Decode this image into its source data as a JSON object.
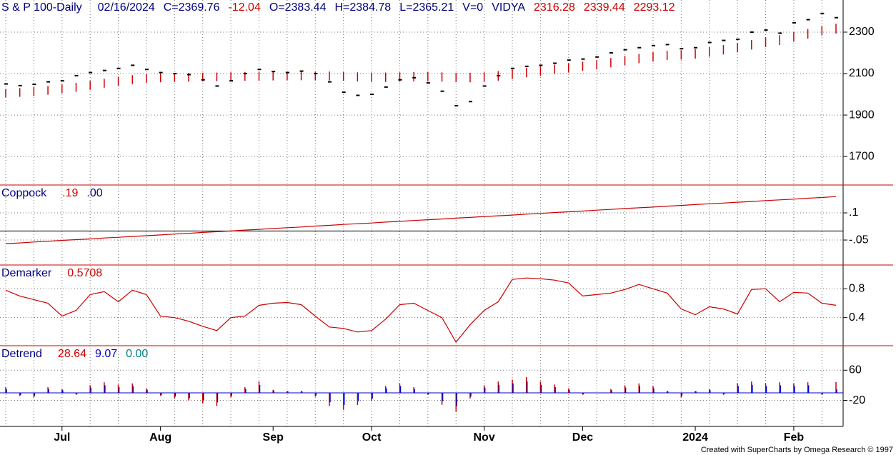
{
  "chart_data": [
    {
      "type": "price_bands",
      "legend": [
        {
          "text": "S & P 100-Daily",
          "color": "#000080"
        },
        {
          "text": "02/16/2024",
          "color": "#000080"
        },
        {
          "text": "C=2369.76",
          "color": "#000080"
        },
        {
          "text": "-12.04",
          "color": "#cc0000"
        },
        {
          "text": "O=2383.44",
          "color": "#000080"
        },
        {
          "text": "H=2384.78",
          "color": "#000080"
        },
        {
          "text": "L=2365.21",
          "color": "#000080"
        },
        {
          "text": "V=0",
          "color": "#000080"
        },
        {
          "text": "VIDYA",
          "color": "#000080"
        },
        {
          "text": "2316.28",
          "color": "#cc0000"
        },
        {
          "text": "2339.44",
          "color": "#cc0000"
        },
        {
          "text": "2293.12",
          "color": "#cc0000"
        }
      ],
      "categories": [
        null,
        null,
        null,
        null,
        "Jul",
        null,
        null,
        null,
        null,
        null,
        null,
        "Aug",
        null,
        null,
        null,
        null,
        null,
        null,
        null,
        "Sep",
        null,
        null,
        null,
        null,
        null,
        null,
        "Oct",
        null,
        null,
        null,
        null,
        null,
        null,
        null,
        "Nov",
        null,
        null,
        null,
        null,
        null,
        null,
        "Dec",
        null,
        null,
        null,
        null,
        null,
        null,
        null,
        "2024",
        null,
        null,
        null,
        null,
        null,
        null,
        "Feb",
        null,
        null,
        null
      ],
      "close": {
        "color": "#000000",
        "values": [
          2050,
          2042,
          2048,
          2060,
          2065,
          2090,
          2105,
          2115,
          2125,
          2140,
          2120,
          2105,
          2100,
          2095,
          2070,
          2040,
          2065,
          2100,
          2120,
          2110,
          2105,
          2112,
          2100,
          2060,
          2010,
          1995,
          2000,
          2035,
          2070,
          2080,
          2055,
          2015,
          1945,
          1965,
          2040,
          2090,
          2125,
          2135,
          2140,
          2150,
          2165,
          2170,
          2180,
          2200,
          2215,
          2225,
          2235,
          2240,
          2220,
          2225,
          2250,
          2260,
          2265,
          2300,
          2310,
          2295,
          2345,
          2360,
          2390,
          2369.76
        ]
      },
      "vidya_upper": {
        "color": "#cc0000",
        "values": [
          2025,
          2030,
          2035,
          2040,
          2048,
          2055,
          2065,
          2075,
          2085,
          2092,
          2098,
          2100,
          2102,
          2103,
          2104,
          2105,
          2106,
          2107,
          2108,
          2109,
          2110,
          2110,
          2110,
          2110,
          2108,
          2106,
          2105,
          2105,
          2106,
          2107,
          2107,
          2106,
          2104,
          2104,
          2106,
          2112,
          2120,
          2128,
          2135,
          2143,
          2150,
          2158,
          2165,
          2175,
          2185,
          2195,
          2203,
          2210,
          2213,
          2218,
          2228,
          2238,
          2248,
          2262,
          2275,
          2285,
          2300,
          2315,
          2330,
          2339.44
        ]
      },
      "vidya_lower": {
        "color": "#cc0000",
        "values": [
          1985,
          1988,
          1992,
          1998,
          2005,
          2012,
          2022,
          2032,
          2042,
          2050,
          2056,
          2058,
          2060,
          2061,
          2062,
          2063,
          2064,
          2065,
          2066,
          2067,
          2068,
          2068,
          2068,
          2067,
          2065,
          2062,
          2060,
          2060,
          2061,
          2062,
          2062,
          2061,
          2059,
          2058,
          2060,
          2066,
          2074,
          2082,
          2090,
          2098,
          2105,
          2113,
          2120,
          2130,
          2140,
          2150,
          2158,
          2165,
          2168,
          2172,
          2182,
          2192,
          2202,
          2216,
          2228,
          2238,
          2254,
          2268,
          2284,
          2293.12
        ]
      },
      "ylim": [
        1566,
        2455
      ],
      "yticks": [
        1700,
        1900,
        2100,
        2300
      ],
      "grid": true
    },
    {
      "type": "line",
      "legend": [
        {
          "text": "Coppock",
          "color": "#000080"
        },
        {
          "text": ".19",
          "color": "#cc0000"
        },
        {
          "text": ".00",
          "color": "#000080"
        }
      ],
      "series": [
        {
          "color": "#cc0000",
          "values": [
            -0.07,
            -0.066,
            -0.061,
            -0.057,
            -0.052,
            -0.048,
            -0.044,
            -0.039,
            -0.035,
            -0.03,
            -0.026,
            -0.022,
            -0.017,
            -0.013,
            -0.008,
            -0.004,
            0.0,
            0.005,
            0.009,
            0.014,
            0.018,
            0.022,
            0.027,
            0.031,
            0.036,
            0.04,
            0.044,
            0.049,
            0.053,
            0.058,
            0.062,
            0.066,
            0.071,
            0.075,
            0.08,
            0.084,
            0.088,
            0.093,
            0.097,
            0.102,
            0.106,
            0.11,
            0.115,
            0.119,
            0.124,
            0.128,
            0.132,
            0.137,
            0.141,
            0.146,
            0.15,
            0.154,
            0.159,
            0.163,
            0.168,
            0.172,
            0.176,
            0.181,
            0.185,
            0.19
          ]
        }
      ],
      "zero_line": {
        "value": 0,
        "color": "#000000"
      },
      "ylim": [
        -0.184,
        0.25
      ],
      "yticks": [
        {
          "value": 0.1,
          "label": ".1"
        },
        {
          "value": -0.05,
          "label": "-.05"
        }
      ],
      "grid": true
    },
    {
      "type": "line",
      "legend": [
        {
          "text": "Demarker",
          "color": "#000080"
        },
        {
          "text": "0.5708",
          "color": "#cc0000"
        }
      ],
      "series": [
        {
          "color": "#cc0000",
          "values": [
            0.78,
            0.7,
            0.65,
            0.6,
            0.42,
            0.5,
            0.72,
            0.76,
            0.62,
            0.78,
            0.72,
            0.42,
            0.4,
            0.35,
            0.28,
            0.22,
            0.4,
            0.42,
            0.57,
            0.6,
            0.61,
            0.58,
            0.42,
            0.27,
            0.25,
            0.2,
            0.22,
            0.38,
            0.58,
            0.6,
            0.5,
            0.4,
            0.06,
            0.3,
            0.5,
            0.62,
            0.93,
            0.95,
            0.94,
            0.92,
            0.88,
            0.7,
            0.72,
            0.74,
            0.79,
            0.86,
            0.8,
            0.74,
            0.52,
            0.44,
            0.55,
            0.52,
            0.45,
            0.79,
            0.8,
            0.62,
            0.75,
            0.74,
            0.6,
            0.5708
          ]
        }
      ],
      "ylim": [
        0.02,
        1.12
      ],
      "yticks": [
        0.4,
        0.8
      ],
      "grid": true
    },
    {
      "type": "bar",
      "legend": [
        {
          "text": "Detrend",
          "color": "#000080"
        },
        {
          "text": "28.64",
          "color": "#cc0000"
        },
        {
          "text": "9.07",
          "color": "#0000cc"
        },
        {
          "text": "0.00",
          "color": "#008080"
        }
      ],
      "series": [
        {
          "color": "#cc0000",
          "values": [
            15,
            -8,
            -12,
            15,
            10,
            -5,
            20,
            28,
            22,
            25,
            12,
            -8,
            -15,
            -20,
            -28,
            -35,
            -12,
            15,
            30,
            8,
            5,
            5,
            -10,
            -35,
            -45,
            -32,
            -22,
            18,
            25,
            15,
            -5,
            -32,
            -50,
            -15,
            20,
            30,
            35,
            42,
            30,
            22,
            12,
            -5,
            0,
            10,
            20,
            25,
            18,
            5,
            -12,
            5,
            10,
            -5,
            25,
            30,
            25,
            28,
            25,
            28,
            -5,
            28.64
          ]
        },
        {
          "color": "#0000cc",
          "values": [
            10,
            -6,
            -8,
            10,
            7,
            -4,
            14,
            20,
            15,
            18,
            8,
            -6,
            -10,
            -14,
            -20,
            -25,
            -8,
            10,
            21,
            6,
            4,
            4,
            -7,
            -25,
            -32,
            -22,
            -15,
            12,
            18,
            10,
            -4,
            -22,
            -35,
            -10,
            14,
            21,
            25,
            30,
            21,
            15,
            8,
            -4,
            0,
            7,
            14,
            18,
            12,
            4,
            -8,
            4,
            7,
            -4,
            18,
            21,
            18,
            20,
            18,
            20,
            -4,
            9.07
          ]
        }
      ],
      "ylim": [
        -89,
        123
      ],
      "yticks": [
        -20,
        60
      ],
      "grid": true
    }
  ],
  "footer": "Created with SuperCharts by Omega Research © 1997"
}
